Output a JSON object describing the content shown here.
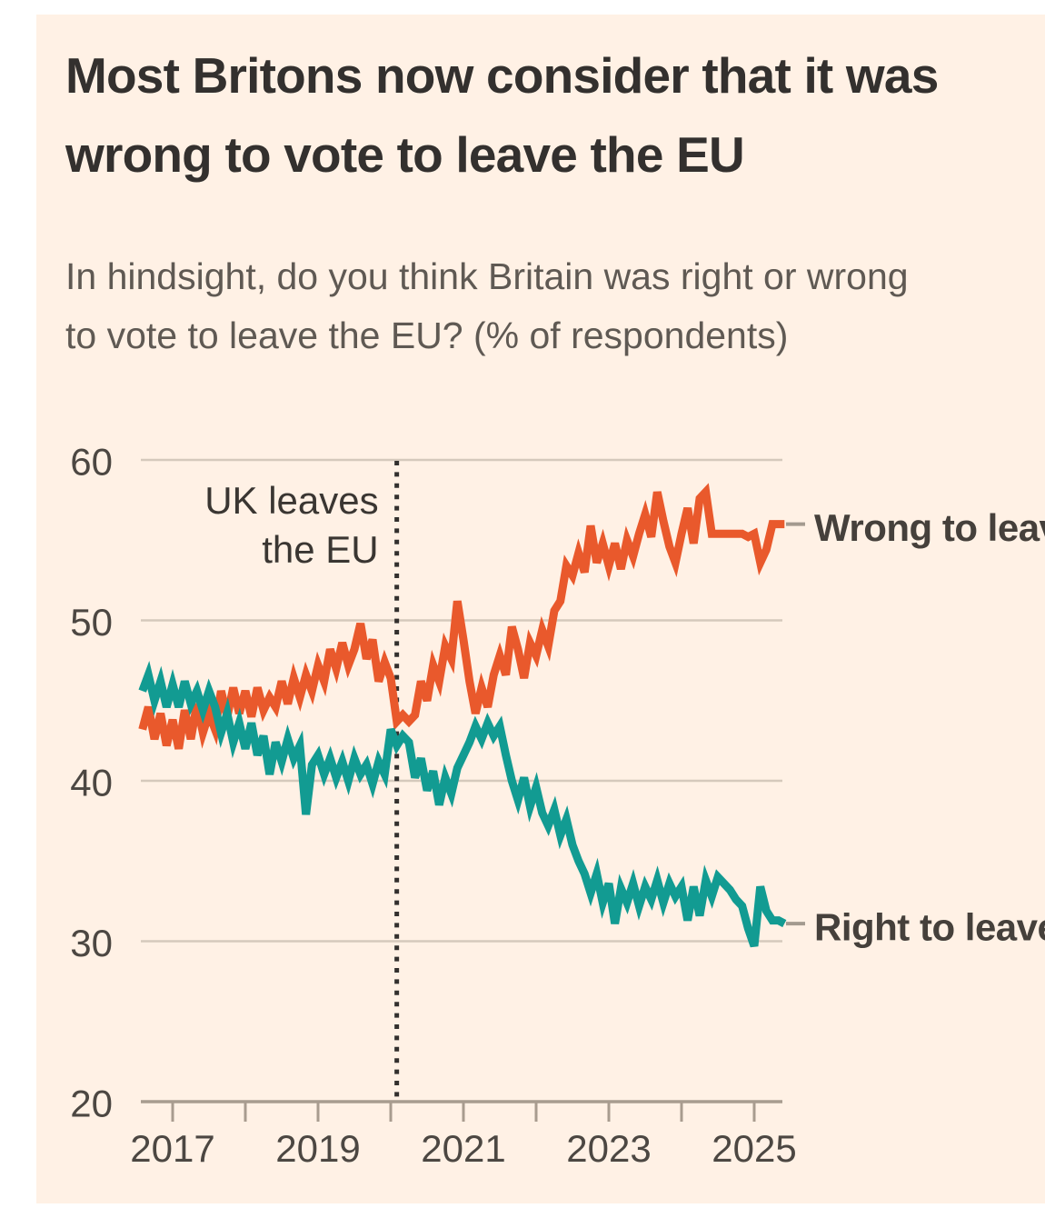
{
  "title": {
    "lines": [
      "Most Britons now consider that it was",
      "wrong to vote to leave the EU"
    ]
  },
  "subtitle": {
    "lines": [
      "In hindsight, do you think Britain was right or wrong",
      "to vote to leave the EU? (% of respondents)"
    ]
  },
  "chart_data": {
    "type": "line",
    "title": "Most Britons now consider that it was wrong to vote to leave the EU",
    "subtitle": "In hindsight, do you think Britain was right or wrong to vote to leave the EU? (% of respondents)",
    "xlabel": "",
    "ylabel": "% of respondents",
    "grid": "horizontal",
    "legend_position": "right-of-line-ends",
    "x_axis": {
      "start_year": 2016.5833,
      "step_years": 0.0833333,
      "tick_years": [
        2017,
        2018,
        2019,
        2020,
        2021,
        2022,
        2023,
        2024,
        2025
      ],
      "labeled_tick_years": [
        2017,
        2019,
        2021,
        2023,
        2025
      ],
      "labels": [
        "2017",
        "2019",
        "2021",
        "2023",
        "2025"
      ]
    },
    "y_axis": {
      "min": 20,
      "max": 60,
      "ticks": [
        60,
        50,
        40,
        30,
        20
      ]
    },
    "event_line": {
      "x": 2020.083,
      "label_lines": [
        "UK leaves",
        "the EU"
      ]
    },
    "series": [
      {
        "name": "Wrong to leave",
        "color": "#e9592c",
        "values": [
          43.2,
          44.6,
          42.6,
          44.2,
          42.2,
          43.8,
          42.0,
          44.4,
          42.6,
          44.8,
          43.0,
          44.2,
          43.2,
          45.6,
          44.0,
          45.8,
          44.2,
          45.6,
          44.0,
          45.8,
          44.4,
          45.2,
          44.6,
          46.2,
          44.8,
          46.4,
          45.2,
          46.6,
          45.6,
          47.2,
          46.2,
          48.2,
          47.0,
          48.6,
          47.2,
          48.2,
          49.8,
          47.6,
          48.8,
          46.2,
          47.4,
          46.4,
          43.7,
          44.1,
          43.7,
          44.1,
          46.2,
          45.0,
          47.2,
          46.2,
          48.4,
          47.6,
          51.2,
          48.8,
          46.2,
          44.2,
          45.8,
          44.6,
          46.6,
          47.8,
          46.6,
          49.6,
          48.2,
          46.4,
          48.6,
          47.8,
          49.4,
          48.4,
          50.6,
          51.2,
          53.4,
          52.8,
          54.2,
          53.0,
          55.9,
          53.6,
          54.8,
          53.4,
          54.8,
          53.2,
          55.0,
          54.0,
          55.4,
          56.6,
          55.2,
          58.0,
          56.2,
          54.6,
          53.6,
          55.4,
          57.0,
          54.8,
          57.6,
          58.0,
          55.4,
          55.4,
          55.4,
          55.4,
          55.4,
          55.4,
          55.2,
          55.4,
          53.6,
          54.4,
          56.0,
          56.0,
          56.0
        ]
      },
      {
        "name": "Right to leave",
        "color": "#129b92",
        "values": [
          45.6,
          46.6,
          45.0,
          46.2,
          44.6,
          46.0,
          44.6,
          46.2,
          44.8,
          45.6,
          44.4,
          45.6,
          44.6,
          43.0,
          44.2,
          42.4,
          43.6,
          42.0,
          43.6,
          41.6,
          42.8,
          40.4,
          42.4,
          41.2,
          42.6,
          41.4,
          42.2,
          37.9,
          41.0,
          41.6,
          40.4,
          41.4,
          40.2,
          41.2,
          40.0,
          41.4,
          40.4,
          41.0,
          39.8,
          41.2,
          40.4,
          43.2,
          42.2,
          42.8,
          42.4,
          40.2,
          41.4,
          39.4,
          40.6,
          38.5,
          40.2,
          39.2,
          40.8,
          41.6,
          42.4,
          43.4,
          42.6,
          43.6,
          42.8,
          43.4,
          41.6,
          40.0,
          38.8,
          40.2,
          38.4,
          39.6,
          38.0,
          37.2,
          38.2,
          36.6,
          37.6,
          36.0,
          35.0,
          34.2,
          33.0,
          34.2,
          32.4,
          33.6,
          31.1,
          33.3,
          32.4,
          33.6,
          32.2,
          33.4,
          32.6,
          33.8,
          32.4,
          33.6,
          32.8,
          33.4,
          31.3,
          33.4,
          31.6,
          33.8,
          32.8,
          34.0,
          33.6,
          33.2,
          32.6,
          32.2,
          30.8,
          29.7,
          33.4,
          31.9,
          31.3,
          31.3,
          31.1
        ]
      }
    ],
    "colors": {
      "background": "#fff1e5",
      "gridline": "#d5c9bc",
      "axis_line": "#a89c8f",
      "axis_text": "#4c4742",
      "event_line": "#33302e",
      "label_tick": "#a39a8f",
      "title_text": "#33302e",
      "subtitle_text": "#5f5953"
    }
  }
}
